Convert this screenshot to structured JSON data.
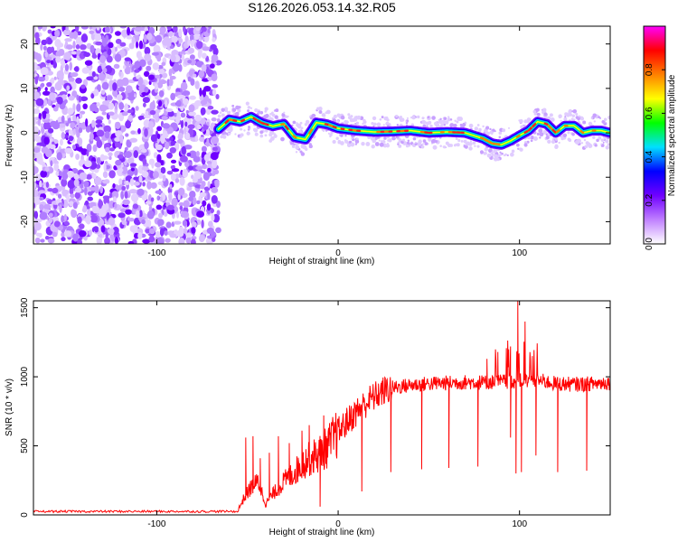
{
  "title": "S126.2026.053.14.32.R05",
  "chart_data": [
    {
      "type": "heatmap",
      "xlabel": "Height of straight line (km)",
      "ylabel": "Frequency (Hz)",
      "xlim": [
        -168,
        150
      ],
      "ylim": [
        -25,
        24
      ],
      "xticks": [
        -100,
        0,
        100
      ],
      "yticks": [
        -20,
        -10,
        0,
        10,
        20
      ],
      "colorbar": {
        "label": "Normalized spectral amplitude",
        "range": [
          0,
          1
        ],
        "ticks": [
          0.0,
          0.2,
          0.4,
          0.6,
          0.8
        ],
        "tick_labels": [
          "0.0",
          "0.2",
          "0.4",
          "0.6",
          "0.8"
        ],
        "colors": [
          "#ffffff",
          "#c080ff",
          "#7000ff",
          "#0000ff",
          "#00e0ff",
          "#00ff00",
          "#ffff00",
          "#ff8000",
          "#ff0000",
          "#ff00ff"
        ]
      },
      "noise_region_x": [
        -168,
        -66
      ],
      "ridge": {
        "x": [
          -66,
          -60,
          -54,
          -48,
          -42,
          -36,
          -30,
          -24,
          -18,
          -12,
          -6,
          0,
          10,
          20,
          30,
          40,
          50,
          60,
          70,
          80,
          85,
          90,
          95,
          100,
          105,
          110,
          115,
          120,
          125,
          130,
          135,
          140,
          145,
          150
        ],
        "freq": [
          0.8,
          3.0,
          2.5,
          3.6,
          2.2,
          1.5,
          2.0,
          -1.0,
          -1.5,
          2.3,
          1.9,
          1.0,
          0.5,
          0.2,
          0.3,
          0.5,
          0.0,
          0.2,
          0.0,
          -1.3,
          -2.4,
          -2.7,
          -1.8,
          -0.6,
          0.5,
          2.5,
          2.0,
          0.0,
          1.6,
          1.6,
          0.0,
          0.5,
          0.5,
          0.0
        ]
      }
    },
    {
      "type": "line",
      "xlabel": "Height of straight line (km)",
      "ylabel": "SNR (10 * v/v)",
      "xlim": [
        -168,
        150
      ],
      "ylim": [
        0,
        1550
      ],
      "xticks": [
        -100,
        0,
        100
      ],
      "yticks": [
        0,
        500,
        1000,
        1500
      ],
      "series": [
        {
          "color": "#ff0000",
          "baseline_x": [
            -168,
            -55
          ],
          "baseline_y": 25,
          "x": [
            -55,
            -52,
            -48,
            -44,
            -40,
            -36,
            -30,
            -24,
            -18,
            -12,
            -6,
            0,
            6,
            12,
            18,
            24,
            30,
            40,
            50,
            60,
            70,
            80,
            90,
            100,
            110,
            120,
            130,
            140,
            150
          ],
          "y": [
            40,
            120,
            200,
            240,
            80,
            150,
            240,
            310,
            390,
            430,
            490,
            600,
            690,
            770,
            840,
            890,
            920,
            940,
            950,
            955,
            960,
            960,
            965,
            970,
            975,
            950,
            945,
            950,
            960
          ],
          "spikes": [
            {
              "x": -51,
              "y": 560
            },
            {
              "x": -47,
              "y": 570
            },
            {
              "x": -43,
              "y": 410
            },
            {
              "x": -38,
              "y": 450
            },
            {
              "x": -33,
              "y": 570
            },
            {
              "x": -27,
              "y": 520
            },
            {
              "x": -20,
              "y": 610
            },
            {
              "x": -16,
              "y": 650
            },
            {
              "x": -8,
              "y": 720
            },
            {
              "x": 82,
              "y": 1130
            },
            {
              "x": 88,
              "y": 1180
            },
            {
              "x": 95,
              "y": 1220
            },
            {
              "x": 99,
              "y": 1550
            },
            {
              "x": 103,
              "y": 1400
            },
            {
              "x": 107,
              "y": 1150
            }
          ],
          "dips": [
            {
              "x": -10,
              "y": 60
            },
            {
              "x": 13,
              "y": 170
            },
            {
              "x": 29,
              "y": 310
            },
            {
              "x": 46,
              "y": 330
            },
            {
              "x": 61,
              "y": 340
            },
            {
              "x": 77,
              "y": 350
            },
            {
              "x": 95,
              "y": 560
            },
            {
              "x": 98,
              "y": 300
            },
            {
              "x": 101,
              "y": 310
            },
            {
              "x": 109,
              "y": 430
            },
            {
              "x": 121,
              "y": 310
            },
            {
              "x": 137,
              "y": 320
            }
          ]
        }
      ]
    }
  ]
}
